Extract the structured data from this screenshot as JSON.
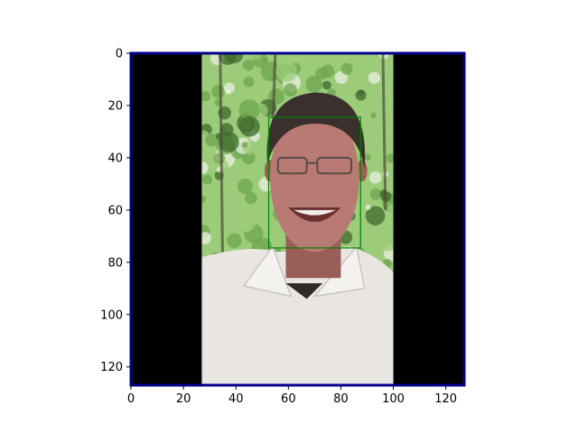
{
  "figure": {
    "type": "image-plot",
    "subject": "pixelated portrait of a smiling man with glasses, white collared shirt, green foliage background",
    "x_axis": {
      "min": 0,
      "max": 127,
      "ticks": [
        0,
        20,
        40,
        60,
        80,
        100,
        120
      ]
    },
    "y_axis": {
      "min": 0,
      "max": 127,
      "ticks": [
        0,
        20,
        40,
        60,
        80,
        100,
        120
      ]
    },
    "image_frame": {
      "x0": 0,
      "x1": 127,
      "y0": 0,
      "y1": 127,
      "color": "#00008b"
    },
    "black_bars": [
      {
        "name": "left-black-bar",
        "x0": 0,
        "x1": 27,
        "y0": 0,
        "y1": 127
      },
      {
        "name": "right-black-bar",
        "x0": 100,
        "x1": 127,
        "y0": 0,
        "y1": 127
      }
    ],
    "photo_region": {
      "x0": 27,
      "x1": 100,
      "y0": 0,
      "y1": 127
    },
    "face_box": {
      "x0": 52.5,
      "x1": 87.5,
      "y0": 24.5,
      "y1": 74.5,
      "color": "#008000"
    }
  },
  "colors": {
    "axis": "#000000",
    "sky": "#e8f0e0",
    "foliage_light": "#9ccc7a",
    "foliage_mid": "#6ea64e",
    "foliage_dark": "#3f6a2e",
    "shirt": "#e9e6e2",
    "shirt_shadow": "#c9c4c0",
    "skin": "#b87b73",
    "skin_shadow": "#9a5e58",
    "hair": "#3a302e",
    "glasses": "#5a4a48",
    "mouth": "#6b2f30",
    "teeth": "#f1ece6"
  }
}
